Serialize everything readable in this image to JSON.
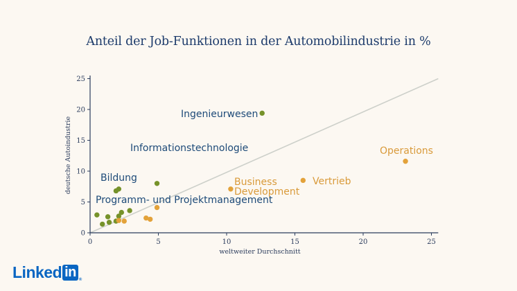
{
  "title": "Anteil der Job-Funktionen in der Automobilindustrie in %",
  "logo": {
    "text": "Linked",
    "box": "in",
    "reg": "®"
  },
  "chart_data": {
    "type": "scatter",
    "title": "Anteil der Job-Funktionen in der Automobilindustrie in %",
    "xlabel": "weltweiter Durchschnitt",
    "ylabel": "deutsche Autoindustrie",
    "xlim": [
      0,
      25.5
    ],
    "ylim": [
      0,
      25.5
    ],
    "xticks": [
      0,
      5,
      10,
      15,
      20,
      25
    ],
    "yticks": [
      0,
      5,
      10,
      15,
      20,
      25
    ],
    "grid": false,
    "reference_line": {
      "from": [
        0,
        0
      ],
      "to": [
        25.5,
        25
      ]
    },
    "colors": {
      "green": "#76922a",
      "orange": "#e3a23a",
      "dark_label": "#1d4a78",
      "orange_label": "#d99a3a",
      "axis": "#2a3b5c",
      "line": "#cdd0ca"
    },
    "series": [
      {
        "color": "green",
        "points": [
          [
            0.5,
            2.9
          ],
          [
            0.9,
            1.4
          ],
          [
            1.3,
            2.6
          ],
          [
            1.4,
            1.7
          ],
          [
            1.9,
            1.9
          ],
          [
            2.1,
            2.7
          ],
          [
            2.3,
            3.3
          ],
          [
            2.9,
            3.6
          ],
          [
            1.9,
            6.8
          ],
          [
            2.1,
            7.1
          ],
          [
            4.9,
            8.0
          ],
          [
            12.6,
            19.4
          ]
        ]
      },
      {
        "color": "orange",
        "points": [
          [
            2.1,
            2.0
          ],
          [
            2.5,
            1.9
          ],
          [
            4.1,
            2.4
          ],
          [
            4.4,
            2.2
          ],
          [
            4.9,
            4.1
          ],
          [
            10.3,
            7.1
          ],
          [
            15.6,
            8.5
          ],
          [
            23.1,
            11.6
          ]
        ]
      }
    ],
    "annotations": [
      {
        "id": "ingenieurwesen",
        "lines": [
          "Ingenieurwesen"
        ],
        "color": "dark"
      },
      {
        "id": "informationstechnologie",
        "lines": [
          "Informationstechnologie"
        ],
        "color": "dark"
      },
      {
        "id": "bildung",
        "lines": [
          "Bildung"
        ],
        "color": "dark"
      },
      {
        "id": "programm",
        "lines": [
          "Programm- und Projektmanagement"
        ],
        "color": "dark"
      },
      {
        "id": "business",
        "lines": [
          "Business",
          "Development"
        ],
        "color": "orange"
      },
      {
        "id": "vertrieb",
        "lines": [
          "Vertrieb"
        ],
        "color": "orange"
      },
      {
        "id": "operations",
        "lines": [
          "Operations"
        ],
        "color": "orange"
      }
    ]
  }
}
